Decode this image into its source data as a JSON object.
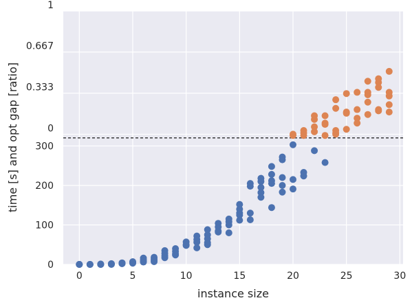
{
  "chart_data": {
    "type": "scatter",
    "title": "",
    "xlabel": "instance size",
    "ylabel": "time [s] and opt gap [ratio]",
    "xlim": [
      -1.5,
      30.3
    ],
    "x_ticks": [
      0,
      5,
      10,
      15,
      20,
      25,
      30
    ],
    "grid": true,
    "panels": {
      "upper": {
        "ylim": [
          -0.03,
          1.0
        ],
        "y_ticks": [
          0,
          0.333,
          0.667,
          1
        ],
        "y_tick_labels": [
          "0",
          "0.333",
          "0.667",
          "1"
        ]
      },
      "lower": {
        "ylim": [
          0,
          320
        ],
        "y_ticks": [
          0,
          100,
          200,
          300
        ],
        "y_tick_labels": [
          "0",
          "100",
          "200",
          "300"
        ]
      },
      "divider": "dashed horizontal line at 0 of the upper panel"
    },
    "series": [
      {
        "color": "#4c72b0",
        "panel": "lower",
        "points": [
          [
            0,
            0
          ],
          [
            0,
            0
          ],
          [
            0,
            0
          ],
          [
            0,
            0
          ],
          [
            1,
            0
          ],
          [
            1,
            0
          ],
          [
            1,
            0
          ],
          [
            1,
            0
          ],
          [
            2,
            1
          ],
          [
            2,
            0
          ],
          [
            2,
            0
          ],
          [
            2,
            0
          ],
          [
            3,
            2
          ],
          [
            3,
            1
          ],
          [
            3,
            0
          ],
          [
            3,
            1
          ],
          [
            4,
            4
          ],
          [
            4,
            3
          ],
          [
            4,
            2
          ],
          [
            4,
            2
          ],
          [
            5,
            7
          ],
          [
            5,
            6
          ],
          [
            5,
            4
          ],
          [
            5,
            3
          ],
          [
            6,
            16
          ],
          [
            6,
            12
          ],
          [
            6,
            8
          ],
          [
            6,
            6
          ],
          [
            7,
            18
          ],
          [
            7,
            14
          ],
          [
            7,
            10
          ],
          [
            7,
            7
          ],
          [
            8,
            35
          ],
          [
            8,
            28
          ],
          [
            8,
            22
          ],
          [
            8,
            17
          ],
          [
            9,
            40
          ],
          [
            9,
            33
          ],
          [
            9,
            27
          ],
          [
            9,
            24
          ],
          [
            10,
            57
          ],
          [
            10,
            50
          ],
          [
            10,
            48
          ],
          [
            11,
            72
          ],
          [
            11,
            63
          ],
          [
            11,
            56
          ],
          [
            11,
            42
          ],
          [
            12,
            88
          ],
          [
            12,
            75
          ],
          [
            12,
            65
          ],
          [
            12,
            55
          ],
          [
            12,
            50
          ],
          [
            13,
            104
          ],
          [
            13,
            95
          ],
          [
            13,
            85
          ],
          [
            13,
            82
          ],
          [
            14,
            115
          ],
          [
            14,
            108
          ],
          [
            14,
            100
          ],
          [
            14,
            80
          ],
          [
            15,
            152
          ],
          [
            15,
            140
          ],
          [
            15,
            130
          ],
          [
            15,
            125
          ],
          [
            15,
            112
          ],
          [
            16,
            205
          ],
          [
            16,
            198
          ],
          [
            16,
            130
          ],
          [
            16,
            113
          ],
          [
            17,
            218
          ],
          [
            17,
            210
          ],
          [
            17,
            195
          ],
          [
            17,
            182
          ],
          [
            17,
            170
          ],
          [
            18,
            248
          ],
          [
            18,
            228
          ],
          [
            18,
            212
          ],
          [
            18,
            205
          ],
          [
            18,
            144
          ],
          [
            19,
            272
          ],
          [
            19,
            265
          ],
          [
            19,
            220
          ],
          [
            19,
            200
          ],
          [
            19,
            183
          ],
          [
            20,
            303
          ],
          [
            20,
            215
          ],
          [
            20,
            191
          ],
          [
            21,
            233
          ],
          [
            21,
            224
          ],
          [
            22,
            288
          ],
          [
            23,
            258
          ]
        ]
      },
      {
        "color": "#dd8452",
        "panel": "upper",
        "points": [
          [
            20,
            0.0
          ],
          [
            20,
            -0.01
          ],
          [
            21,
            0.03
          ],
          [
            21,
            0.01
          ],
          [
            21,
            -0.01
          ],
          [
            22,
            0.15
          ],
          [
            22,
            0.12
          ],
          [
            22,
            0.06
          ],
          [
            22,
            0.02
          ],
          [
            23,
            0.15
          ],
          [
            23,
            0.09
          ],
          [
            23,
            0.08
          ],
          [
            23,
            -0.01
          ],
          [
            24,
            0.28
          ],
          [
            24,
            0.21
          ],
          [
            24,
            0.03
          ],
          [
            24,
            0.01
          ],
          [
            24,
            0.0
          ],
          [
            25,
            0.33
          ],
          [
            25,
            0.18
          ],
          [
            25,
            0.17
          ],
          [
            25,
            0.04
          ],
          [
            26,
            0.34
          ],
          [
            26,
            0.2
          ],
          [
            26,
            0.13
          ],
          [
            26,
            0.09
          ],
          [
            27,
            0.43
          ],
          [
            27,
            0.34
          ],
          [
            27,
            0.32
          ],
          [
            27,
            0.26
          ],
          [
            27,
            0.16
          ],
          [
            28,
            0.45
          ],
          [
            28,
            0.42
          ],
          [
            28,
            0.38
          ],
          [
            28,
            0.2
          ],
          [
            28,
            0.19
          ],
          [
            29,
            0.51
          ],
          [
            29,
            0.34
          ],
          [
            29,
            0.31
          ],
          [
            29,
            0.24
          ],
          [
            29,
            0.18
          ]
        ]
      }
    ]
  }
}
